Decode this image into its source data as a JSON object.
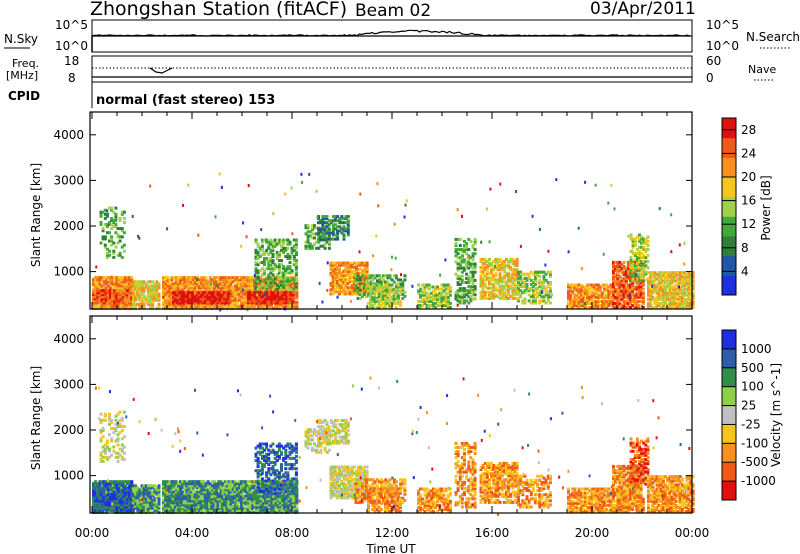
{
  "header": {
    "title": "Zhongshan Station (fitACF)",
    "beam": "Beam 02",
    "date": "03/Apr/2011"
  },
  "noise_panel": {
    "left_label": "N.Sky",
    "right_label": "N.Search",
    "tick_top": "10^5",
    "tick_bottom": "10^0"
  },
  "freq_panel": {
    "left_label": "Freq.",
    "left_unit": "[MHz]",
    "left_tick_top": "18",
    "left_tick_bottom": "8",
    "right_label": "Nave",
    "right_tick_top": "60",
    "right_tick_bottom": "0"
  },
  "cpid": {
    "label": "CPID",
    "value": "normal (fast stereo) 153"
  },
  "colors": {
    "power_scale": [
      "#1e2fe0",
      "#1f57a8",
      "#2f7f3a",
      "#43a83c",
      "#9fd24a",
      "#f5c51c",
      "#f79020",
      "#f05a18",
      "#e01010"
    ],
    "velocity_scale": [
      "#e01010",
      "#f05a18",
      "#f79020",
      "#f5c51c",
      "#c0c0c0",
      "#8fd04a",
      "#2f8f4a",
      "#2d5ea8",
      "#1e2fe0"
    ]
  },
  "chart_data": [
    {
      "type": "heatmap",
      "name": "power",
      "xlabel": "",
      "ylabel": "Slant Range [km]",
      "x_ticks": [
        "00:00",
        "04:00",
        "08:00",
        "12:00",
        "16:00",
        "20:00",
        "00:00"
      ],
      "xlim_hours": [
        0,
        24
      ],
      "ylim_km": [
        180,
        4500
      ],
      "y_ticks": [
        1000,
        2000,
        3000,
        4000
      ],
      "colorbar_label": "Power [dB]",
      "colorbar_ticks": [
        4,
        8,
        12,
        16,
        20,
        24,
        28
      ],
      "colorbar_range": [
        0,
        30
      ]
    },
    {
      "type": "heatmap",
      "name": "velocity",
      "xlabel": "Time UT",
      "ylabel": "Slant Range [km]",
      "x_ticks": [
        "00:00",
        "04:00",
        "08:00",
        "12:00",
        "16:00",
        "20:00",
        "00:00"
      ],
      "xlim_hours": [
        0,
        24
      ],
      "ylim_km": [
        180,
        4500
      ],
      "y_ticks": [
        1000,
        2000,
        3000,
        4000
      ],
      "colorbar_label": "Velocity [m s^-1]",
      "colorbar_ticks": [
        "1000",
        "500",
        "100",
        "25",
        "-25",
        "-100",
        "-500",
        "-1000"
      ]
    }
  ]
}
